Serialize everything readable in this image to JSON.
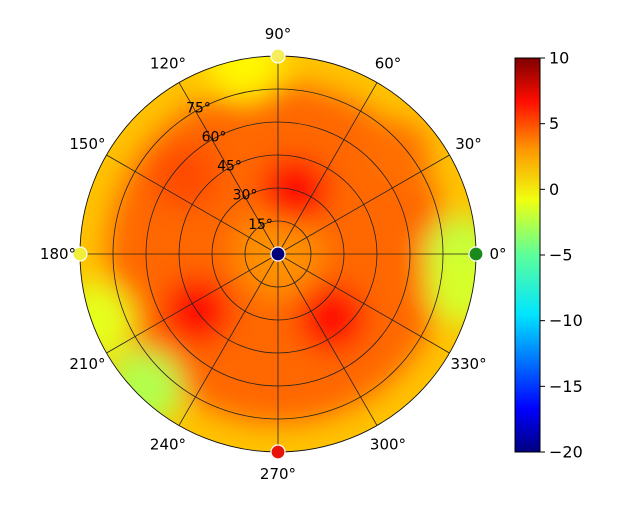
{
  "chart_data": {
    "type": "heatmap",
    "subtype": "polar",
    "title": "",
    "angle_ticks": [
      "0°",
      "30°",
      "60°",
      "90°",
      "120°",
      "150°",
      "180°",
      "210°",
      "240°",
      "270°",
      "300°",
      "330°"
    ],
    "angle_tick_values": [
      0,
      30,
      60,
      90,
      120,
      150,
      180,
      210,
      240,
      270,
      300,
      330
    ],
    "radial_ticks": [
      "15°",
      "30°",
      "45°",
      "60°",
      "75°"
    ],
    "radial_tick_values": [
      15,
      30,
      45,
      60,
      75
    ],
    "rlim": [
      0,
      90
    ],
    "grid": true,
    "colormap": "jet",
    "colorbar": {
      "min": -20,
      "max": 10,
      "ticks": [
        "10",
        "5",
        "0",
        "−5",
        "−10",
        "−15",
        "−20"
      ],
      "tick_values": [
        10,
        5,
        0,
        -5,
        -10,
        -15,
        -20
      ],
      "placement": "right"
    },
    "hotspots": [
      {
        "angle": 75,
        "radius": 30,
        "value": 6
      },
      {
        "angle": 215,
        "radius": 45,
        "value": 6
      },
      {
        "angle": 310,
        "radius": 38,
        "value": 6
      },
      {
        "angle": 140,
        "radius": 55,
        "value": 4
      },
      {
        "angle": 40,
        "radius": 70,
        "value": 3
      }
    ],
    "markers": [
      {
        "angle": 0,
        "radius": 0,
        "color": "#00007a",
        "label": "center"
      },
      {
        "angle": 0,
        "radius": 90,
        "color": "#1a8a1a",
        "label": "east"
      },
      {
        "angle": 90,
        "radius": 90,
        "color": "#f5ed5a",
        "label": "north"
      },
      {
        "angle": 180,
        "radius": 90,
        "color": "#f2ef3a",
        "label": "west"
      },
      {
        "angle": 270,
        "radius": 90,
        "color": "#e8140c",
        "label": "south"
      }
    ]
  }
}
